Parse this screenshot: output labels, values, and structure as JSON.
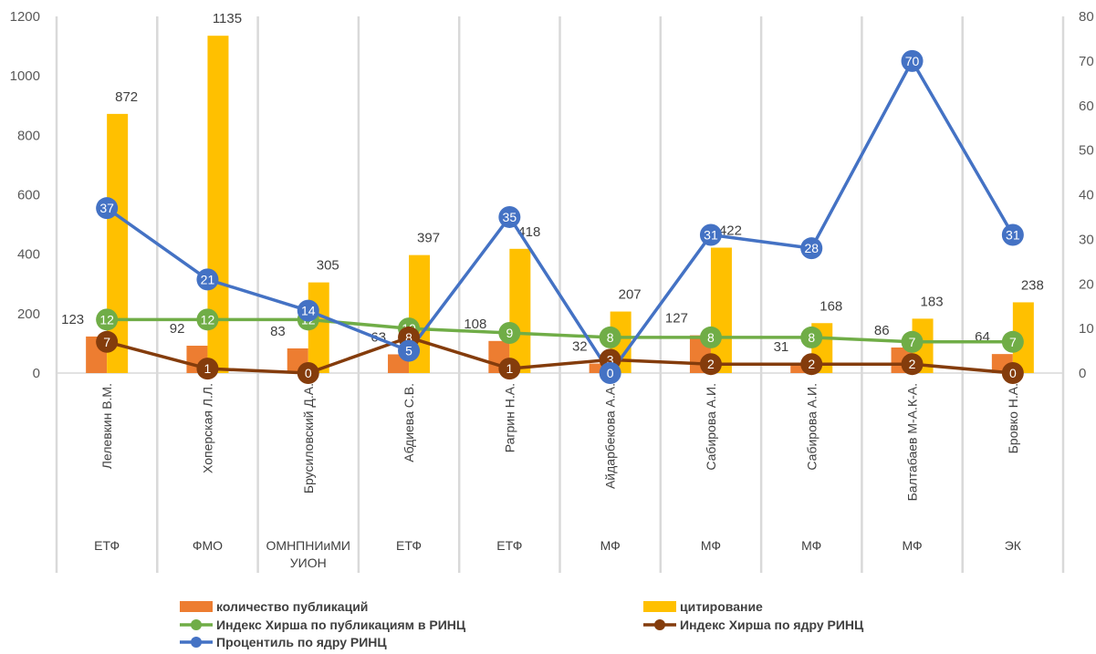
{
  "chart_data": {
    "type": "bar",
    "categories": [
      "Лелевкин В.М.",
      "Хоперская Л.Л.",
      "Брусиловский Д.А.",
      "Абдиева  С.В.",
      "Рагрин Н.А.",
      "Айдарбекова  А.А.",
      "Сабирова А.И.",
      "Сабирова  А.И.",
      "Балтабаев М-А.К-А.",
      "Бровко Н.А."
    ],
    "groups": [
      "ЕТФ",
      "ФМО",
      "ОМНПНИиМИУИОН",
      "ЕТФ",
      "ЕТФ",
      "МФ",
      "МФ",
      "МФ",
      "МФ",
      "ЭК"
    ],
    "y_left": {
      "lim": [
        0,
        1200
      ],
      "ticks": [
        0,
        200,
        400,
        600,
        800,
        1000,
        1200
      ]
    },
    "y_right": {
      "lim": [
        0,
        80
      ],
      "ticks": [
        0,
        10,
        20,
        30,
        40,
        50,
        60,
        70,
        80
      ]
    },
    "series": [
      {
        "name": "количество публикаций",
        "kind": "bar",
        "axis": "left",
        "color": "#ED7D31",
        "values": [
          123,
          92,
          83,
          63,
          108,
          32,
          127,
          31,
          86,
          64
        ]
      },
      {
        "name": "цитирование",
        "kind": "bar",
        "axis": "left",
        "color": "#FFC000",
        "values": [
          872,
          1135,
          305,
          397,
          418,
          207,
          422,
          168,
          183,
          238
        ]
      },
      {
        "name": "Индекс Хирша по публикациям в РИНЦ",
        "kind": "line",
        "axis": "right",
        "color": "#70AD47",
        "values": [
          12,
          12,
          12,
          10,
          9,
          8,
          8,
          8,
          7,
          7
        ]
      },
      {
        "name": "Индекс Хирша по ядру РИНЦ",
        "kind": "line",
        "axis": "right",
        "color": "#843C0C",
        "values": [
          7,
          1,
          0,
          8,
          1,
          3,
          2,
          2,
          2,
          0
        ]
      },
      {
        "name": "Процентиль по ядру РИНЦ",
        "kind": "line",
        "axis": "right",
        "color": "#4472C4",
        "values": [
          37,
          21,
          14,
          5,
          35,
          0,
          31,
          28,
          70,
          31
        ]
      }
    ],
    "grid": "vertical-category-separators",
    "legend": "bottom"
  }
}
